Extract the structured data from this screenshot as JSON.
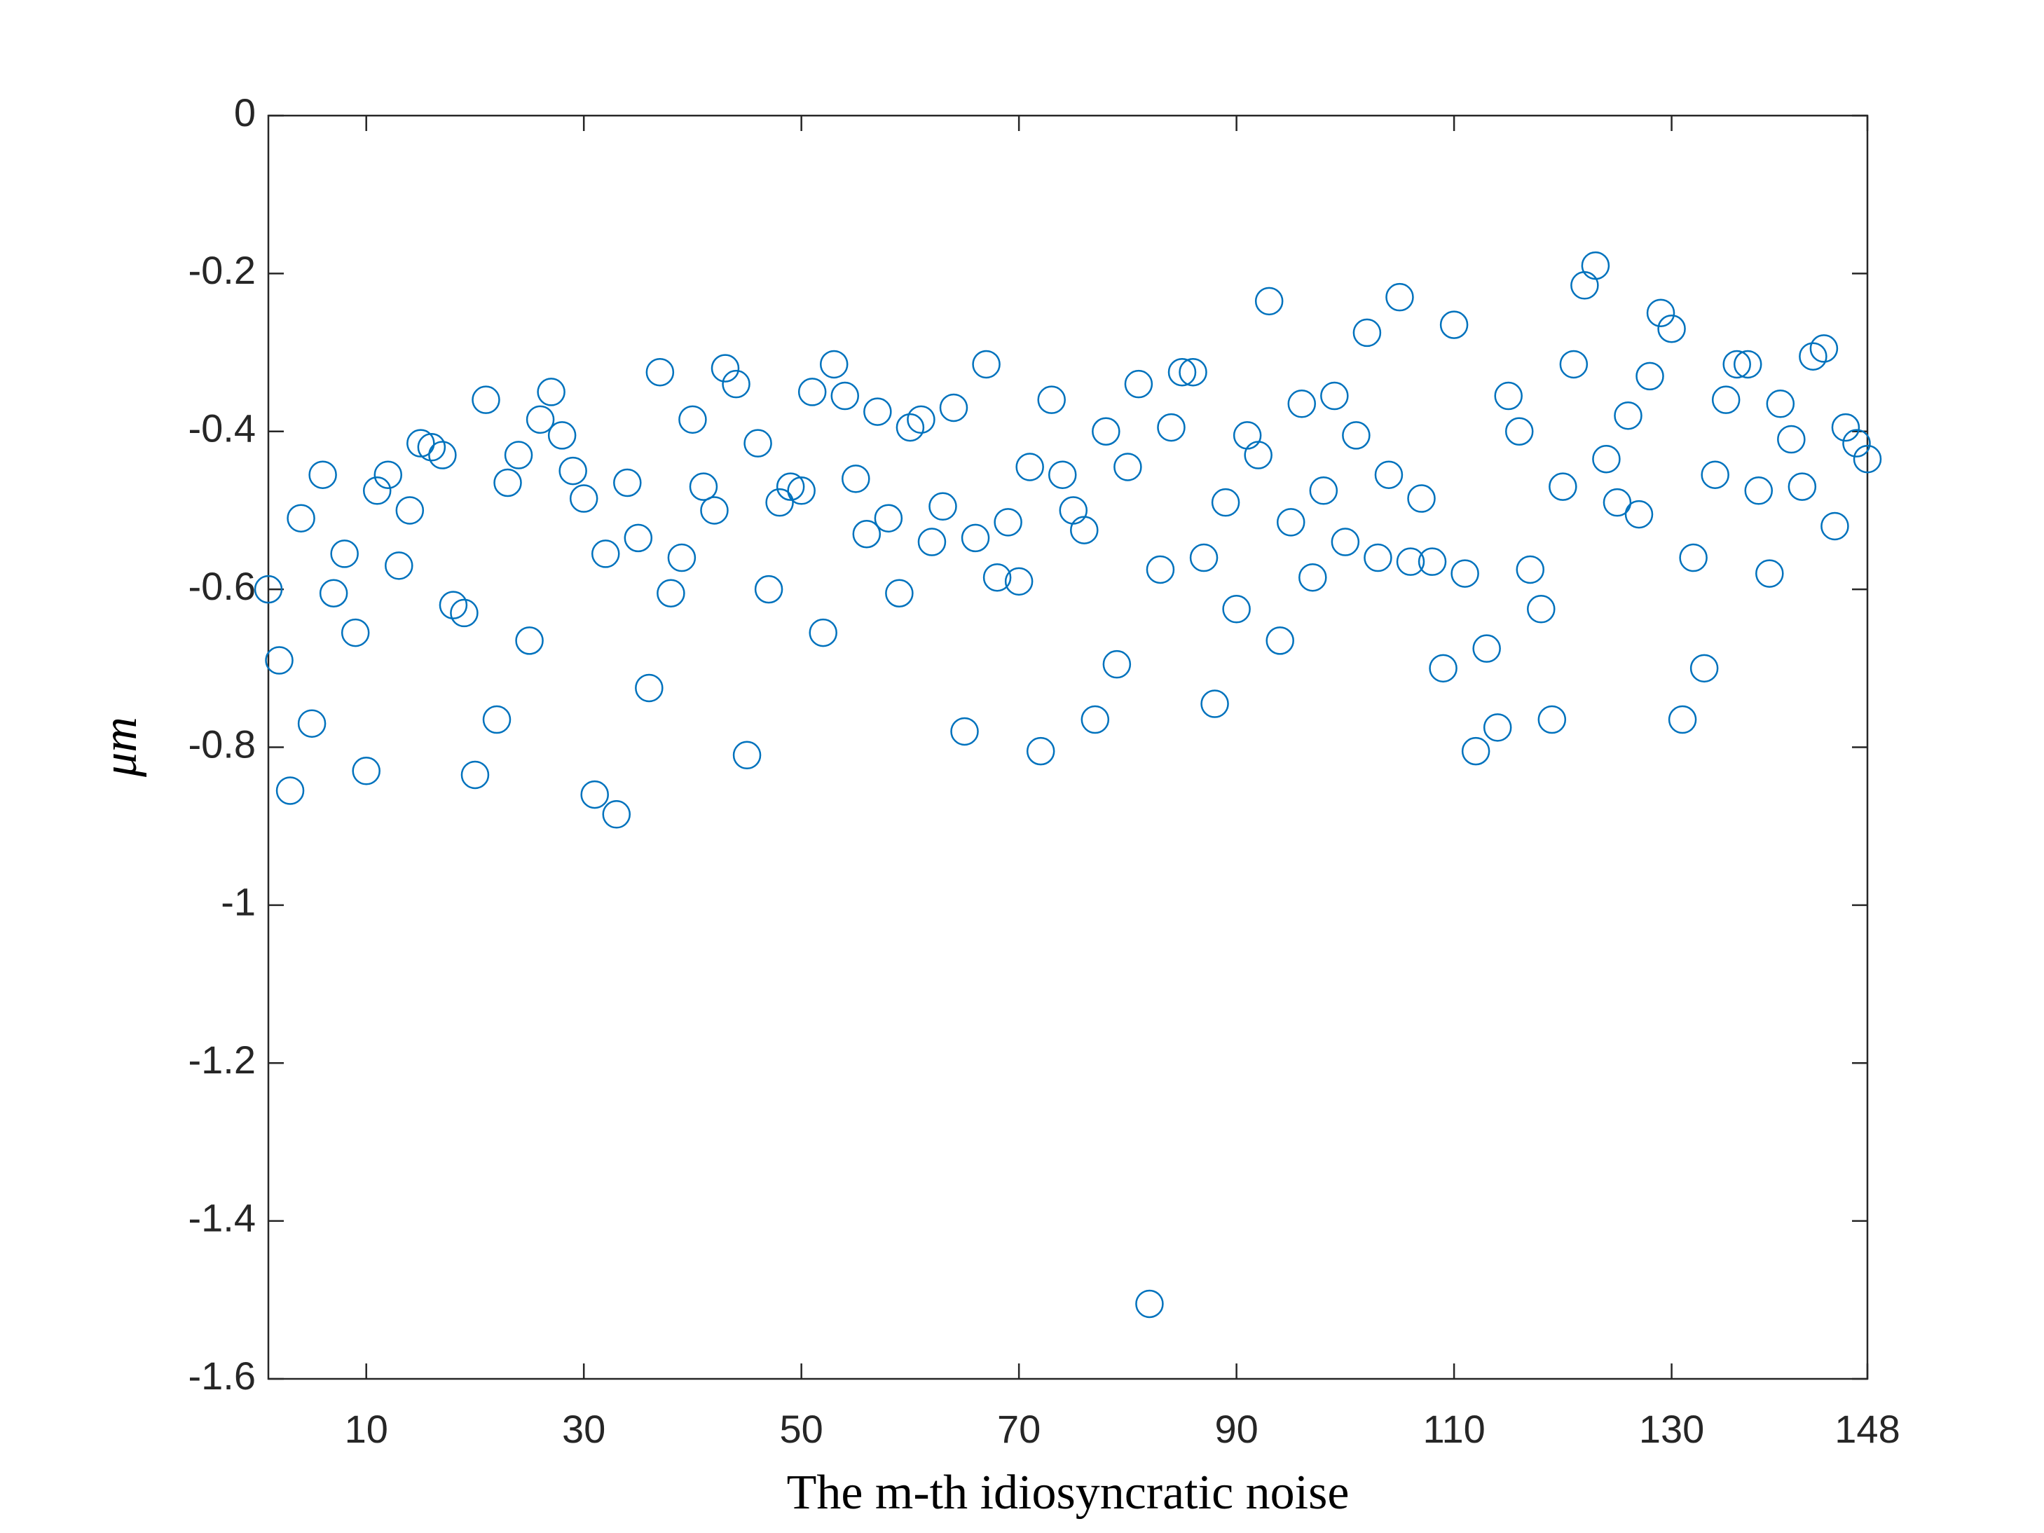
{
  "chart_data": {
    "type": "scatter",
    "x_label": "The m-th idiosyncratic noise",
    "y_label": "μm",
    "x": [
      1,
      2,
      3,
      4,
      5,
      6,
      7,
      8,
      9,
      10,
      11,
      12,
      13,
      14,
      15,
      16,
      17,
      18,
      19,
      20,
      21,
      22,
      23,
      24,
      25,
      26,
      27,
      28,
      29,
      30,
      31,
      32,
      33,
      34,
      35,
      36,
      37,
      38,
      39,
      40,
      41,
      42,
      43,
      44,
      45,
      46,
      47,
      48,
      49,
      50,
      51,
      52,
      53,
      54,
      55,
      56,
      57,
      58,
      59,
      60,
      61,
      62,
      63,
      64,
      65,
      66,
      67,
      68,
      69,
      70,
      71,
      72,
      73,
      74,
      75,
      76,
      77,
      78,
      79,
      80,
      81,
      82,
      83,
      84,
      85,
      86,
      87,
      88,
      89,
      90,
      91,
      92,
      93,
      94,
      95,
      96,
      97,
      98,
      99,
      100,
      101,
      102,
      103,
      104,
      105,
      106,
      107,
      108,
      109,
      110,
      111,
      112,
      113,
      114,
      115,
      116,
      117,
      118,
      119,
      120,
      121,
      122,
      123,
      124,
      125,
      126,
      127,
      128,
      129,
      130,
      131,
      132,
      133,
      134,
      135,
      136,
      137,
      138,
      139,
      140,
      141,
      142,
      143,
      144,
      145,
      146,
      147,
      148
    ],
    "values": [
      -0.6,
      -0.69,
      -0.855,
      -0.51,
      -0.77,
      -0.455,
      -0.605,
      -0.555,
      -0.655,
      -0.83,
      -0.475,
      -0.455,
      -0.57,
      -0.5,
      -0.415,
      -0.42,
      -0.43,
      -0.62,
      -0.63,
      -0.835,
      -0.36,
      -0.765,
      -0.465,
      -0.43,
      -0.665,
      -0.385,
      -0.35,
      -0.405,
      -0.45,
      -0.485,
      -0.86,
      -0.555,
      -0.885,
      -0.465,
      -0.535,
      -0.725,
      -0.325,
      -0.605,
      -0.56,
      -0.385,
      -0.47,
      -0.5,
      -0.32,
      -0.34,
      -0.81,
      -0.415,
      -0.6,
      -0.49,
      -0.47,
      -0.475,
      -0.35,
      -0.655,
      -0.315,
      -0.355,
      -0.46,
      -0.53,
      -0.375,
      -0.51,
      -0.605,
      -0.395,
      -0.385,
      -0.54,
      -0.495,
      -0.37,
      -0.78,
      -0.535,
      -0.315,
      -0.585,
      -0.515,
      -0.59,
      -0.445,
      -0.805,
      -0.36,
      -0.455,
      -0.5,
      -0.525,
      -0.765,
      -0.4,
      -0.695,
      -0.445,
      -0.34,
      -1.505,
      -0.575,
      -0.395,
      -0.325,
      -0.325,
      -0.56,
      -0.745,
      -0.49,
      -0.625,
      -0.405,
      -0.43,
      -0.235,
      -0.665,
      -0.515,
      -0.365,
      -0.585,
      -0.475,
      -0.355,
      -0.54,
      -0.405,
      -0.275,
      -0.56,
      -0.455,
      -0.23,
      -0.565,
      -0.485,
      -0.565,
      -0.7,
      -0.265,
      -0.58,
      -0.805,
      -0.675,
      -0.775,
      -0.355,
      -0.4,
      -0.575,
      -0.625,
      -0.765,
      -0.47,
      -0.315,
      -0.215,
      -0.19,
      -0.435,
      -0.49,
      -0.38,
      -0.505,
      -0.33,
      -0.25,
      -0.27,
      -0.765,
      -0.56,
      -0.7,
      -0.455,
      -0.36,
      -0.315,
      -0.315,
      -0.475,
      -0.58,
      -0.365,
      -0.41,
      -0.47,
      -0.305,
      -0.295,
      -0.52,
      -0.395,
      -0.415,
      -0.435
    ],
    "color": "#0072bd",
    "marker": "circle",
    "xlim": [
      1,
      148
    ],
    "ylim": [
      -1.6,
      0
    ],
    "xticks": [
      10,
      30,
      50,
      70,
      90,
      110,
      130,
      148
    ],
    "yticks": [
      -1.6,
      -1.4,
      -1.2,
      -1,
      -0.8,
      -0.6,
      -0.4,
      -0.2,
      0
    ],
    "grid": false
  }
}
